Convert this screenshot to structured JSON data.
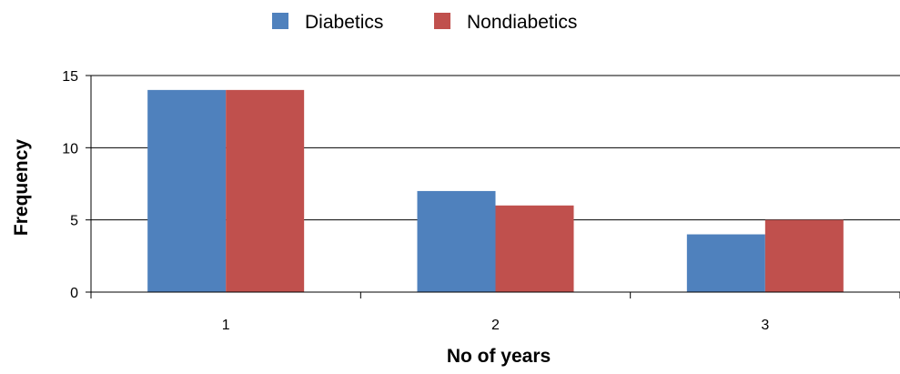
{
  "chart_data": {
    "type": "bar",
    "categories": [
      "1",
      "2",
      "3"
    ],
    "series": [
      {
        "name": "Diabetics",
        "values": [
          14,
          7,
          4
        ],
        "color": "#4f81bd"
      },
      {
        "name": "Nondiabetics",
        "values": [
          14,
          6,
          5
        ],
        "color": "#c0504d"
      }
    ],
    "xlabel": "No of years",
    "ylabel": "Frequency",
    "ylim": [
      0,
      15
    ],
    "yticks": [
      "0",
      "5",
      "10",
      "15"
    ],
    "grid": true,
    "legend": "top-center"
  }
}
